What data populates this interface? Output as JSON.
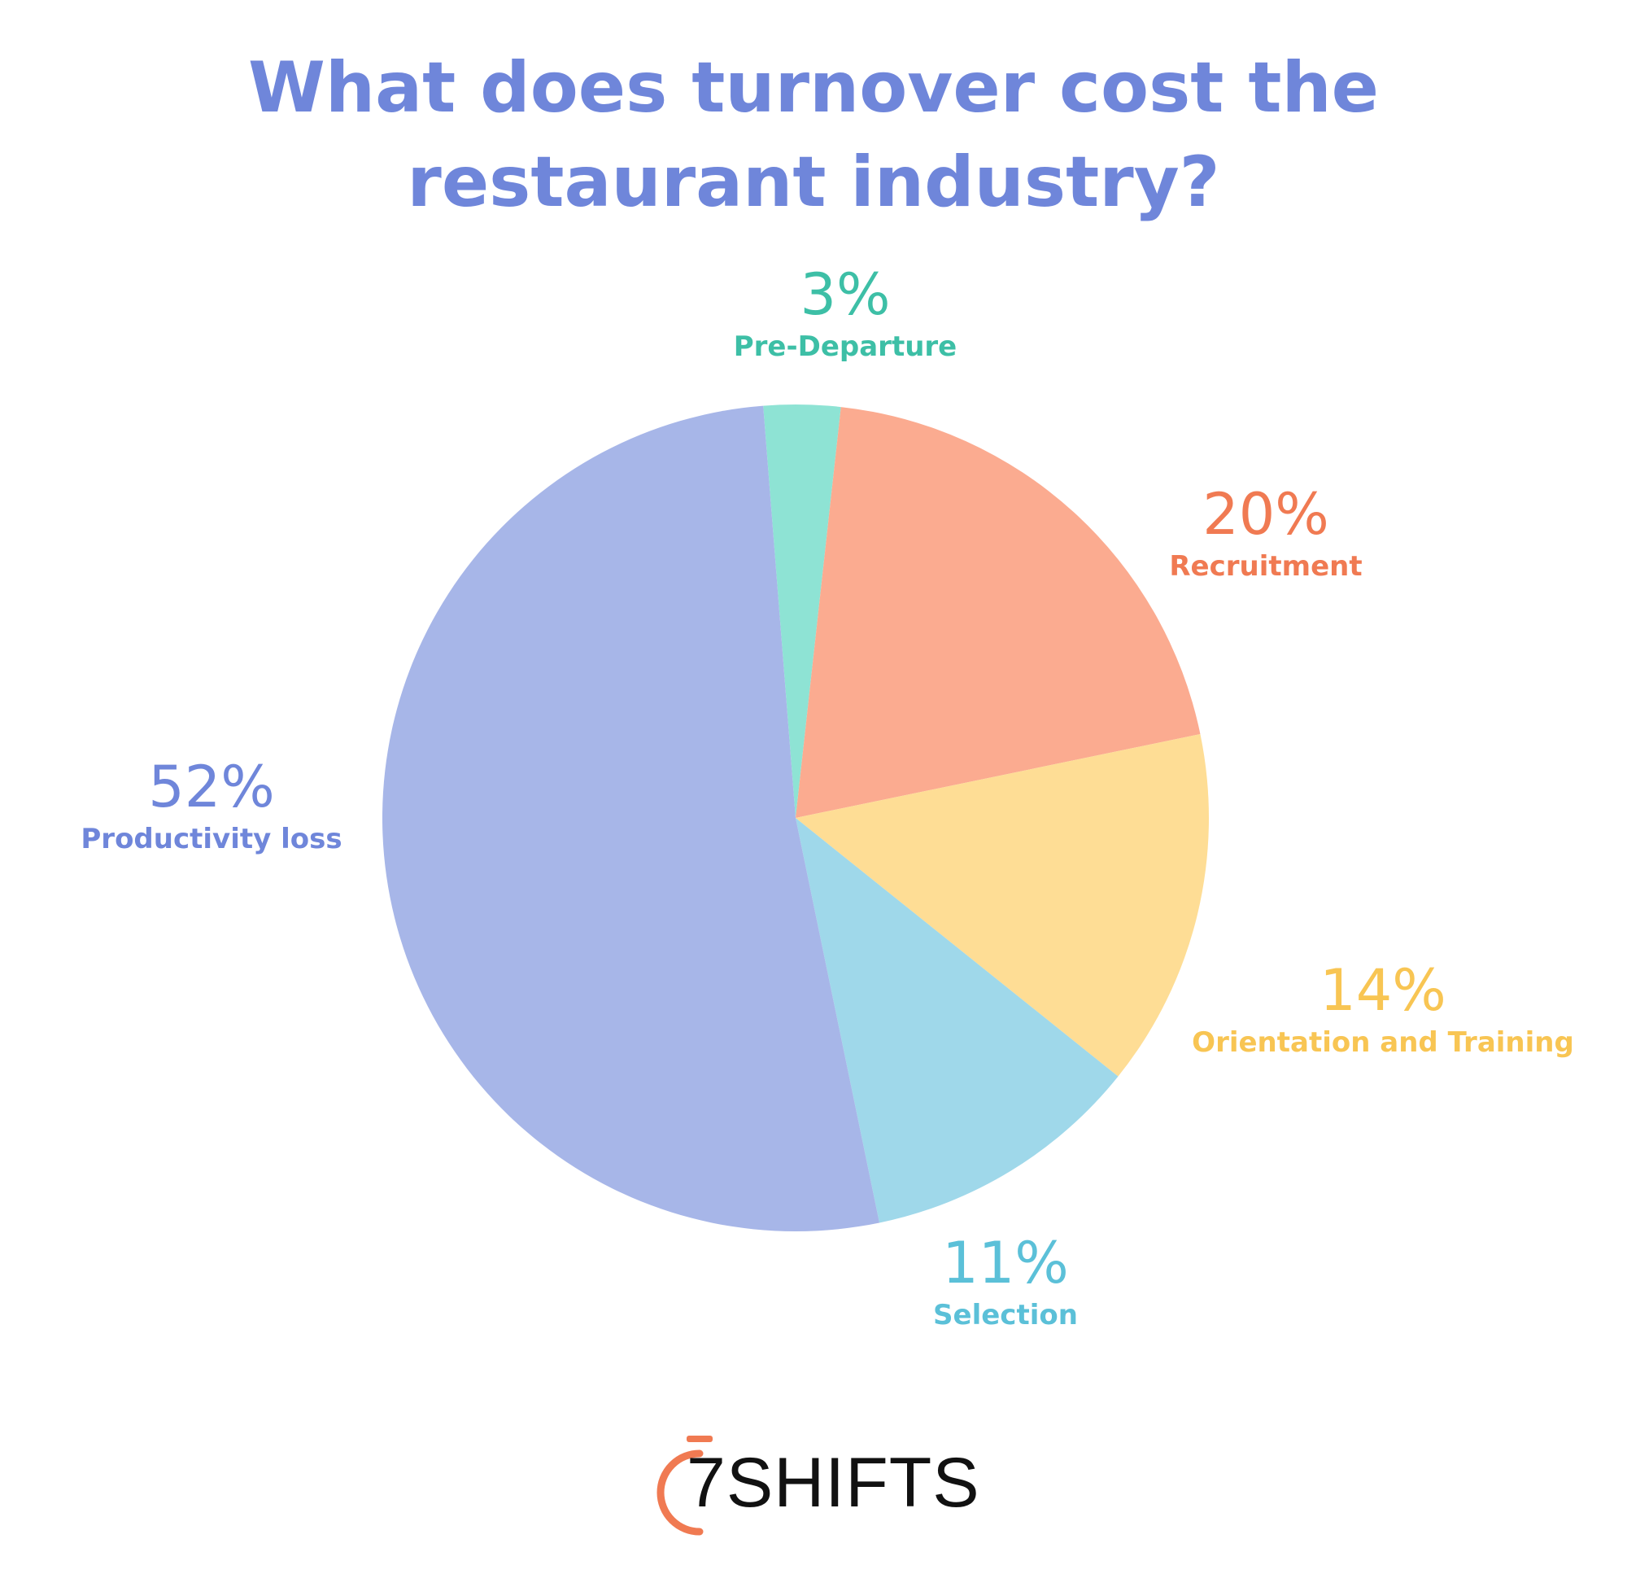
{
  "chart_data": {
    "type": "pie",
    "title_lines": [
      "What does turnover cost the",
      "restaurant industry?"
    ],
    "slices": [
      {
        "label": "Pre-Departure",
        "value": 3,
        "display": "3%",
        "color": "#8ee3d4",
        "label_color": "#3dbfa6"
      },
      {
        "label": "Recruitment",
        "value": 20,
        "display": "20%",
        "color": "#fbab90",
        "label_color": "#f07a52"
      },
      {
        "label": "Orientation and Training",
        "value": 14,
        "display": "14%",
        "color": "#fedd95",
        "label_color": "#f8c553"
      },
      {
        "label": "Selection",
        "value": 11,
        "display": "11%",
        "color": "#9fd8ea",
        "label_color": "#5bc0d8"
      },
      {
        "label": "Productivity loss",
        "value": 52,
        "display": "52%",
        "color": "#a7b6e8",
        "label_color": "#6f86da"
      }
    ]
  },
  "title_color": "#6f86da",
  "logo": {
    "text": "SHIFTS",
    "digit": "7",
    "accent_color": "#f07a52"
  }
}
